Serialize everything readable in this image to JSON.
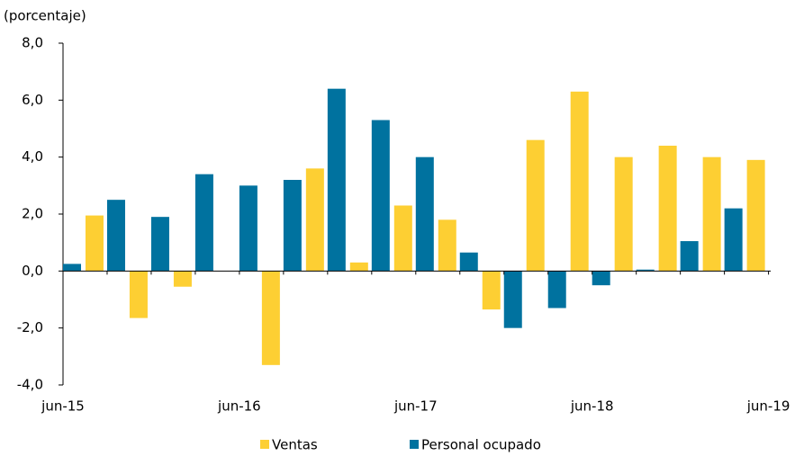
{
  "chart_data": {
    "type": "bar",
    "y_label": "(porcentaje)",
    "categories": [
      "jun-15",
      null,
      null,
      null,
      "jun-16",
      null,
      null,
      null,
      "jun-17",
      null,
      null,
      null,
      "jun-18",
      null,
      null,
      null,
      "jun-19"
    ],
    "series": [
      {
        "name": "Ventas",
        "color": "#fdcf33",
        "values": [
          null,
          1.95,
          -1.65,
          -0.55,
          0,
          -3.3,
          3.6,
          0.3,
          2.3,
          1.8,
          -1.35,
          4.6,
          6.3,
          4.0,
          4.4,
          4.0,
          3.9
        ]
      },
      {
        "name": "Personal ocupado",
        "color": "#00729f",
        "values": [
          0.25,
          2.5,
          1.9,
          3.4,
          3.0,
          3.2,
          6.4,
          5.3,
          4.0,
          0.65,
          -2.0,
          -1.3,
          -0.5,
          0.05,
          1.05,
          2.2,
          null
        ]
      }
    ],
    "ylim": [
      -4,
      8
    ],
    "yticks": [
      {
        "value": -4,
        "label": "-4,0"
      },
      {
        "value": -2,
        "label": "-2,0"
      },
      {
        "value": 0,
        "label": "0,0"
      },
      {
        "value": 2,
        "label": "2,0"
      },
      {
        "value": 4,
        "label": "4,0"
      },
      {
        "value": 6,
        "label": "6,0"
      },
      {
        "value": 8,
        "label": "8,0"
      }
    ],
    "legend": "bottom"
  }
}
